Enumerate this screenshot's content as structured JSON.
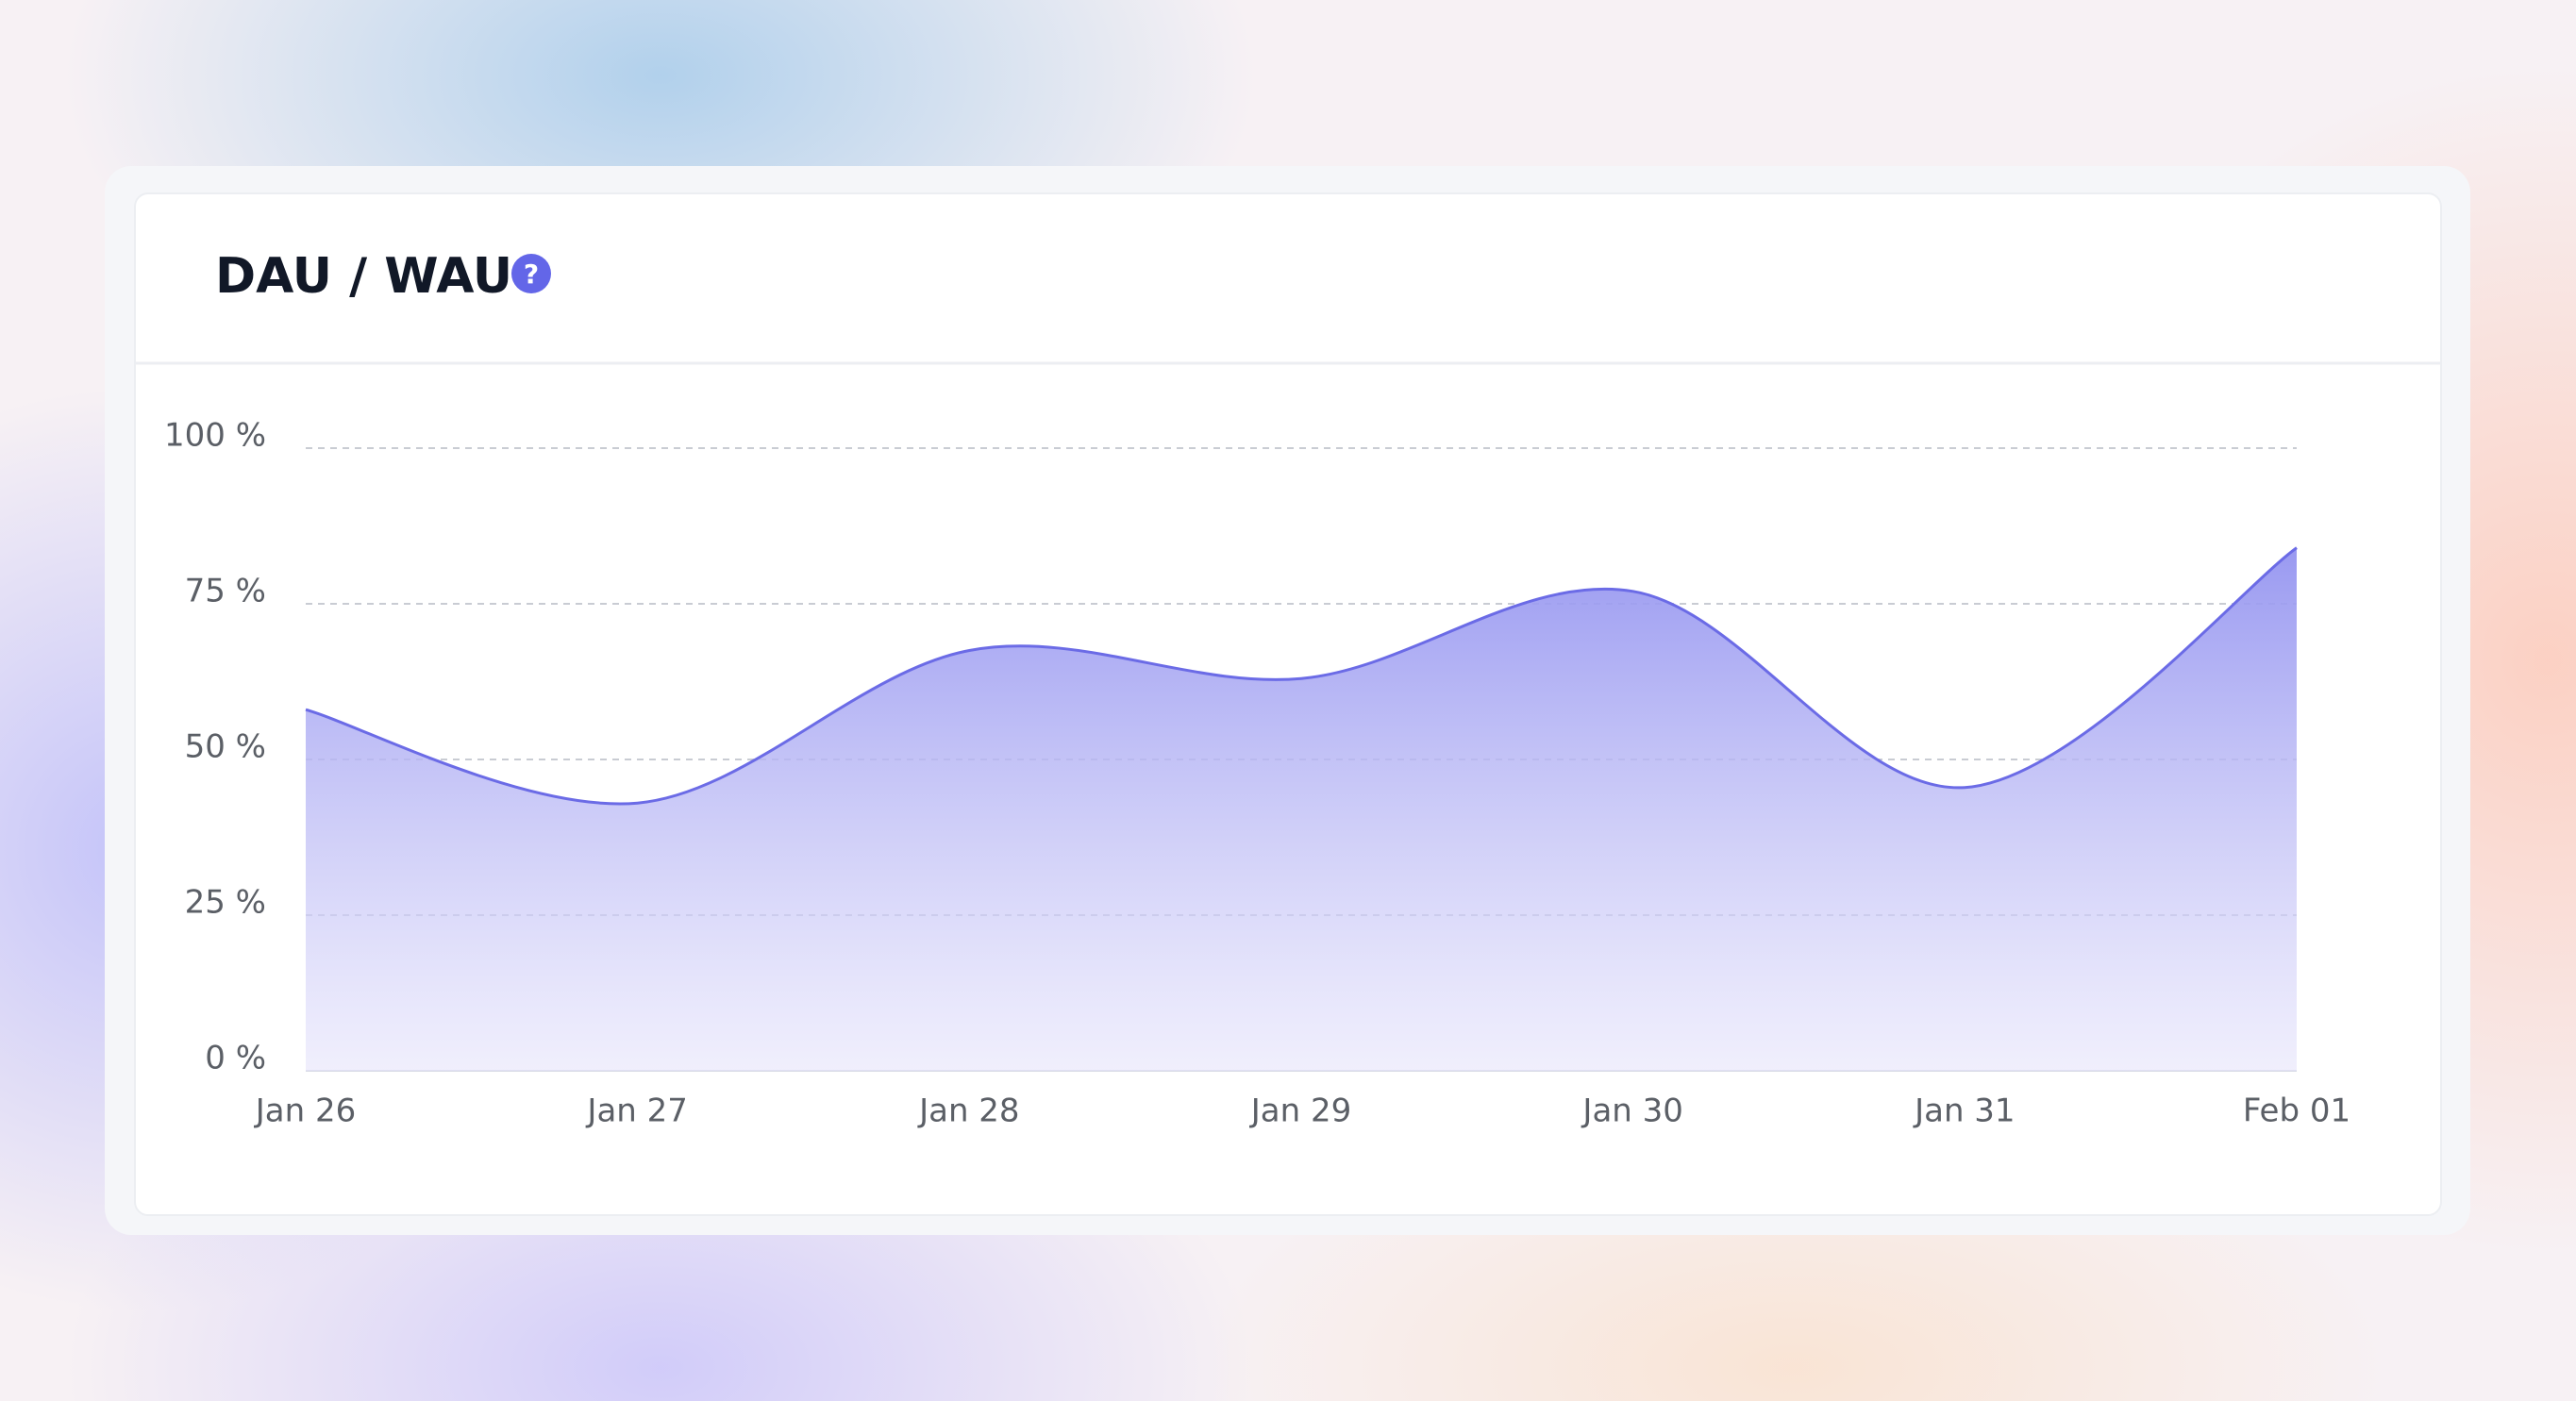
{
  "chart_data": {
    "type": "area",
    "title": "DAU / WAU",
    "categories": [
      "Jan 26",
      "Jan 27",
      "Jan 28",
      "Jan 29",
      "Jan 30",
      "Jan 31",
      "Feb 01"
    ],
    "series": [
      {
        "name": "DAU / WAU",
        "color": "#6b6be6",
        "values": [
          58,
          43,
          67.5,
          63,
          77,
          45.5,
          84
        ]
      }
    ],
    "ylim": [
      0,
      100
    ],
    "yticks": [
      {
        "value": 0,
        "label": "0 %"
      },
      {
        "value": 25,
        "label": "25 %"
      },
      {
        "value": 50,
        "label": "50 %"
      },
      {
        "value": 75,
        "label": "75 %"
      },
      {
        "value": 100,
        "label": "100 %"
      }
    ],
    "grid": true
  }
}
